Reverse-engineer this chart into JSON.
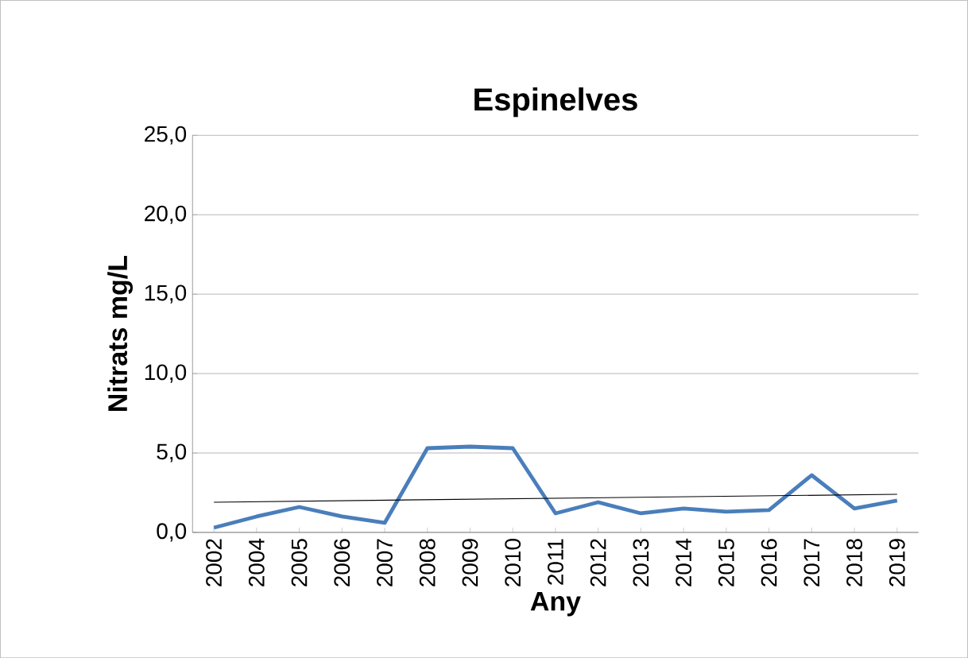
{
  "chart_data": {
    "type": "line",
    "title": "Espinelves",
    "xlabel": "Any",
    "ylabel": "Nitrats mg/L",
    "categories": [
      "2002",
      "2004",
      "2005",
      "2006",
      "2007",
      "2008",
      "2009",
      "2010",
      "2011",
      "2012",
      "2013",
      "2014",
      "2015",
      "2016",
      "2017",
      "2018",
      "2019"
    ],
    "series": [
      {
        "color": "#4a7ebb",
        "values": [
          0.3,
          1.0,
          1.6,
          1.0,
          0.6,
          5.3,
          5.4,
          5.3,
          1.2,
          1.9,
          1.2,
          1.5,
          1.3,
          1.4,
          3.6,
          1.5,
          2.0
        ]
      },
      {
        "color": "#000000",
        "values": [
          1.9,
          null,
          null,
          null,
          null,
          null,
          null,
          null,
          null,
          null,
          null,
          null,
          null,
          null,
          null,
          null,
          2.4
        ]
      }
    ],
    "ylim": [
      0,
      25
    ],
    "yticks": [
      {
        "value": 0,
        "label": "0,0"
      },
      {
        "value": 5,
        "label": "5,0"
      },
      {
        "value": 10,
        "label": "10,0"
      },
      {
        "value": 15,
        "label": "15,0"
      },
      {
        "value": 20,
        "label": "20,0"
      },
      {
        "value": 25,
        "label": "25,0"
      }
    ],
    "grid": "y",
    "marker": "none",
    "line_style": "solid"
  }
}
